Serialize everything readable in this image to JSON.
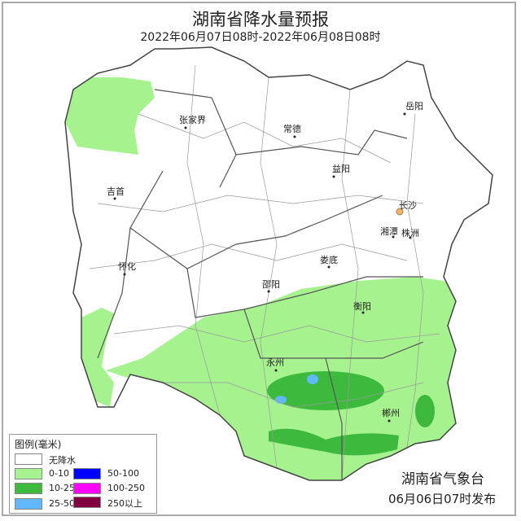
{
  "header": {
    "title": "湖南省降水量预报",
    "subtitle": "2022年06月07日08时-2022年06月08日08时"
  },
  "cities": [
    "张家界",
    "常德",
    "岳阳",
    "吉首",
    "益阳",
    "长沙",
    "湘潭",
    "株洲",
    "怀化",
    "娄底",
    "邵阳",
    "衡阳",
    "永州",
    "郴州"
  ],
  "legend": {
    "title": "图例(毫米)",
    "items": [
      {
        "label": "无降水",
        "color": "#ffffff"
      },
      {
        "label": "0-10",
        "color": "#a6f28f"
      },
      {
        "label": "10-25",
        "color": "#3dba3d"
      },
      {
        "label": "25-50",
        "color": "#61b8ff"
      },
      {
        "label": "50-100",
        "color": "#0000ff"
      },
      {
        "label": "100-250",
        "color": "#fa00fa"
      },
      {
        "label": "250以上",
        "color": "#800040"
      }
    ]
  },
  "footer": {
    "issuer": "湖南省气象台",
    "issued": "06月06日07时发布"
  },
  "colors": {
    "capital_marker": "#f4b26b",
    "border": "#555555"
  }
}
